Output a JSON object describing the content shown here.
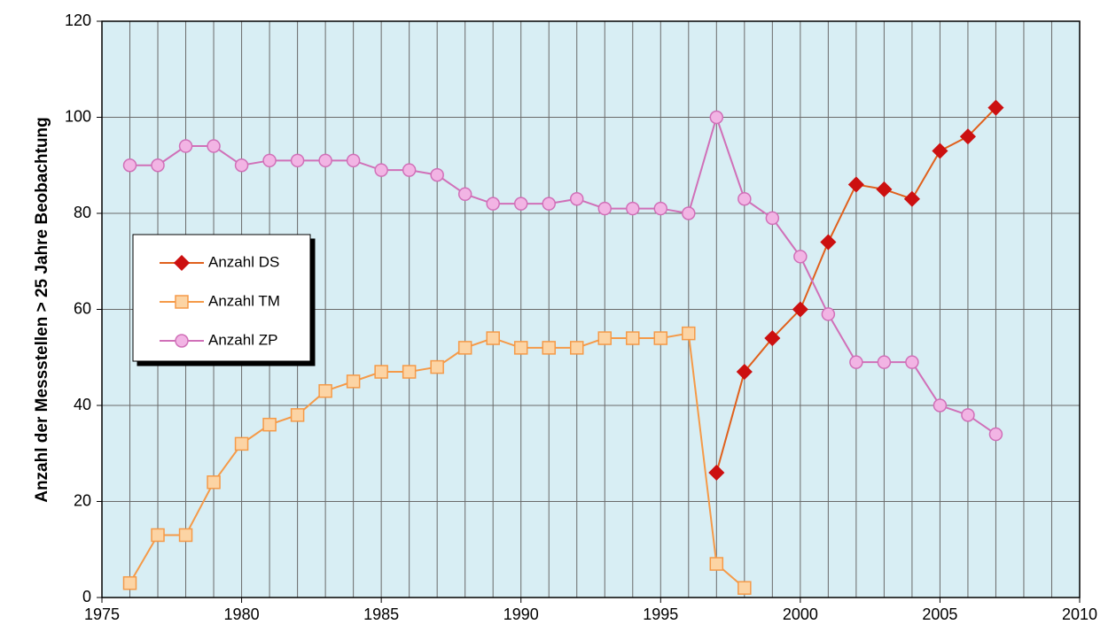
{
  "chart_data": {
    "type": "line",
    "y_label": "Anzahl der Messstellen > 25 Jahre Beobachtung",
    "x": [
      1976,
      1977,
      1978,
      1979,
      1980,
      1981,
      1982,
      1983,
      1984,
      1985,
      1986,
      1987,
      1988,
      1989,
      1990,
      1991,
      1992,
      1993,
      1994,
      1995,
      1996,
      1997,
      1998,
      1999,
      2000,
      2001,
      2002,
      2003,
      2004,
      2005,
      2006,
      2007
    ],
    "series": [
      {
        "name": "Anzahl DS",
        "color": "#e0601c",
        "marker": "diamond",
        "marker_color": "#cc1010",
        "values": [
          null,
          null,
          null,
          null,
          null,
          null,
          null,
          null,
          null,
          null,
          null,
          null,
          null,
          null,
          null,
          null,
          null,
          null,
          null,
          null,
          null,
          26,
          47,
          54,
          60,
          74,
          86,
          85,
          83,
          93,
          96,
          102
        ]
      },
      {
        "name": "Anzahl TM",
        "color": "#f59a48",
        "marker": "square",
        "marker_color": "#fcd4a4",
        "values": [
          3,
          13,
          13,
          24,
          32,
          36,
          38,
          43,
          45,
          47,
          47,
          48,
          52,
          54,
          52,
          52,
          52,
          54,
          54,
          54,
          55,
          7,
          2,
          null,
          null,
          null,
          null,
          null,
          null,
          null,
          null,
          null
        ]
      },
      {
        "name": "Anzahl ZP",
        "color": "#d070b8",
        "marker": "circle",
        "marker_color": "#f2b4e4",
        "values": [
          90,
          90,
          94,
          94,
          90,
          91,
          91,
          91,
          91,
          89,
          89,
          88,
          84,
          82,
          82,
          82,
          83,
          81,
          81,
          81,
          80,
          100,
          83,
          79,
          71,
          59,
          49,
          49,
          49,
          40,
          38,
          34
        ]
      }
    ],
    "xlim": [
      1975,
      2010
    ],
    "xticks": [
      1975,
      1980,
      1985,
      1990,
      1995,
      2000,
      2005,
      2010
    ],
    "ylim": [
      0,
      120
    ],
    "yticks": [
      0,
      20,
      40,
      60,
      80,
      100,
      120
    ],
    "grid": true,
    "legend": "left"
  }
}
